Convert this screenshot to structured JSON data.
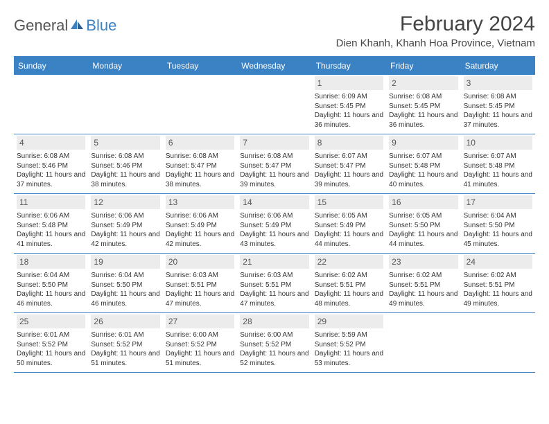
{
  "logo": {
    "part1": "General",
    "part2": "Blue"
  },
  "title": "February 2024",
  "location": "Dien Khanh, Khanh Hoa Province, Vietnam",
  "colors": {
    "header_bg": "#3b82c4",
    "daynum_bg": "#ececec",
    "text": "#333333",
    "title_text": "#444444"
  },
  "weekdays": [
    "Sunday",
    "Monday",
    "Tuesday",
    "Wednesday",
    "Thursday",
    "Friday",
    "Saturday"
  ],
  "weeks": [
    [
      {
        "n": "",
        "sr": "",
        "ss": "",
        "dl": ""
      },
      {
        "n": "",
        "sr": "",
        "ss": "",
        "dl": ""
      },
      {
        "n": "",
        "sr": "",
        "ss": "",
        "dl": ""
      },
      {
        "n": "",
        "sr": "",
        "ss": "",
        "dl": ""
      },
      {
        "n": "1",
        "sr": "Sunrise: 6:09 AM",
        "ss": "Sunset: 5:45 PM",
        "dl": "Daylight: 11 hours and 36 minutes."
      },
      {
        "n": "2",
        "sr": "Sunrise: 6:08 AM",
        "ss": "Sunset: 5:45 PM",
        "dl": "Daylight: 11 hours and 36 minutes."
      },
      {
        "n": "3",
        "sr": "Sunrise: 6:08 AM",
        "ss": "Sunset: 5:45 PM",
        "dl": "Daylight: 11 hours and 37 minutes."
      }
    ],
    [
      {
        "n": "4",
        "sr": "Sunrise: 6:08 AM",
        "ss": "Sunset: 5:46 PM",
        "dl": "Daylight: 11 hours and 37 minutes."
      },
      {
        "n": "5",
        "sr": "Sunrise: 6:08 AM",
        "ss": "Sunset: 5:46 PM",
        "dl": "Daylight: 11 hours and 38 minutes."
      },
      {
        "n": "6",
        "sr": "Sunrise: 6:08 AM",
        "ss": "Sunset: 5:47 PM",
        "dl": "Daylight: 11 hours and 38 minutes."
      },
      {
        "n": "7",
        "sr": "Sunrise: 6:08 AM",
        "ss": "Sunset: 5:47 PM",
        "dl": "Daylight: 11 hours and 39 minutes."
      },
      {
        "n": "8",
        "sr": "Sunrise: 6:07 AM",
        "ss": "Sunset: 5:47 PM",
        "dl": "Daylight: 11 hours and 39 minutes."
      },
      {
        "n": "9",
        "sr": "Sunrise: 6:07 AM",
        "ss": "Sunset: 5:48 PM",
        "dl": "Daylight: 11 hours and 40 minutes."
      },
      {
        "n": "10",
        "sr": "Sunrise: 6:07 AM",
        "ss": "Sunset: 5:48 PM",
        "dl": "Daylight: 11 hours and 41 minutes."
      }
    ],
    [
      {
        "n": "11",
        "sr": "Sunrise: 6:06 AM",
        "ss": "Sunset: 5:48 PM",
        "dl": "Daylight: 11 hours and 41 minutes."
      },
      {
        "n": "12",
        "sr": "Sunrise: 6:06 AM",
        "ss": "Sunset: 5:49 PM",
        "dl": "Daylight: 11 hours and 42 minutes."
      },
      {
        "n": "13",
        "sr": "Sunrise: 6:06 AM",
        "ss": "Sunset: 5:49 PM",
        "dl": "Daylight: 11 hours and 42 minutes."
      },
      {
        "n": "14",
        "sr": "Sunrise: 6:06 AM",
        "ss": "Sunset: 5:49 PM",
        "dl": "Daylight: 11 hours and 43 minutes."
      },
      {
        "n": "15",
        "sr": "Sunrise: 6:05 AM",
        "ss": "Sunset: 5:49 PM",
        "dl": "Daylight: 11 hours and 44 minutes."
      },
      {
        "n": "16",
        "sr": "Sunrise: 6:05 AM",
        "ss": "Sunset: 5:50 PM",
        "dl": "Daylight: 11 hours and 44 minutes."
      },
      {
        "n": "17",
        "sr": "Sunrise: 6:04 AM",
        "ss": "Sunset: 5:50 PM",
        "dl": "Daylight: 11 hours and 45 minutes."
      }
    ],
    [
      {
        "n": "18",
        "sr": "Sunrise: 6:04 AM",
        "ss": "Sunset: 5:50 PM",
        "dl": "Daylight: 11 hours and 46 minutes."
      },
      {
        "n": "19",
        "sr": "Sunrise: 6:04 AM",
        "ss": "Sunset: 5:50 PM",
        "dl": "Daylight: 11 hours and 46 minutes."
      },
      {
        "n": "20",
        "sr": "Sunrise: 6:03 AM",
        "ss": "Sunset: 5:51 PM",
        "dl": "Daylight: 11 hours and 47 minutes."
      },
      {
        "n": "21",
        "sr": "Sunrise: 6:03 AM",
        "ss": "Sunset: 5:51 PM",
        "dl": "Daylight: 11 hours and 47 minutes."
      },
      {
        "n": "22",
        "sr": "Sunrise: 6:02 AM",
        "ss": "Sunset: 5:51 PM",
        "dl": "Daylight: 11 hours and 48 minutes."
      },
      {
        "n": "23",
        "sr": "Sunrise: 6:02 AM",
        "ss": "Sunset: 5:51 PM",
        "dl": "Daylight: 11 hours and 49 minutes."
      },
      {
        "n": "24",
        "sr": "Sunrise: 6:02 AM",
        "ss": "Sunset: 5:51 PM",
        "dl": "Daylight: 11 hours and 49 minutes."
      }
    ],
    [
      {
        "n": "25",
        "sr": "Sunrise: 6:01 AM",
        "ss": "Sunset: 5:52 PM",
        "dl": "Daylight: 11 hours and 50 minutes."
      },
      {
        "n": "26",
        "sr": "Sunrise: 6:01 AM",
        "ss": "Sunset: 5:52 PM",
        "dl": "Daylight: 11 hours and 51 minutes."
      },
      {
        "n": "27",
        "sr": "Sunrise: 6:00 AM",
        "ss": "Sunset: 5:52 PM",
        "dl": "Daylight: 11 hours and 51 minutes."
      },
      {
        "n": "28",
        "sr": "Sunrise: 6:00 AM",
        "ss": "Sunset: 5:52 PM",
        "dl": "Daylight: 11 hours and 52 minutes."
      },
      {
        "n": "29",
        "sr": "Sunrise: 5:59 AM",
        "ss": "Sunset: 5:52 PM",
        "dl": "Daylight: 11 hours and 53 minutes."
      },
      {
        "n": "",
        "sr": "",
        "ss": "",
        "dl": ""
      },
      {
        "n": "",
        "sr": "",
        "ss": "",
        "dl": ""
      }
    ]
  ]
}
